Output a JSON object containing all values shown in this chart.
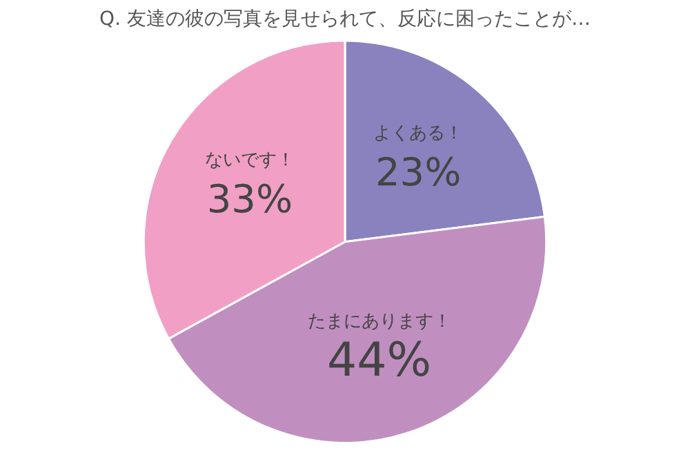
{
  "chart_data": {
    "type": "pie",
    "title": "Q. 友達の彼の写真を見せられて、反応に困ったことが…",
    "categories": [
      "よくある！",
      "たまにあります！",
      "ないです！"
    ],
    "values": [
      23,
      44,
      33
    ],
    "value_labels": [
      "23%",
      "44%",
      "33%"
    ],
    "colors": [
      "#8a82bf",
      "#c08fc0",
      "#f29fc5"
    ],
    "legend": false
  }
}
